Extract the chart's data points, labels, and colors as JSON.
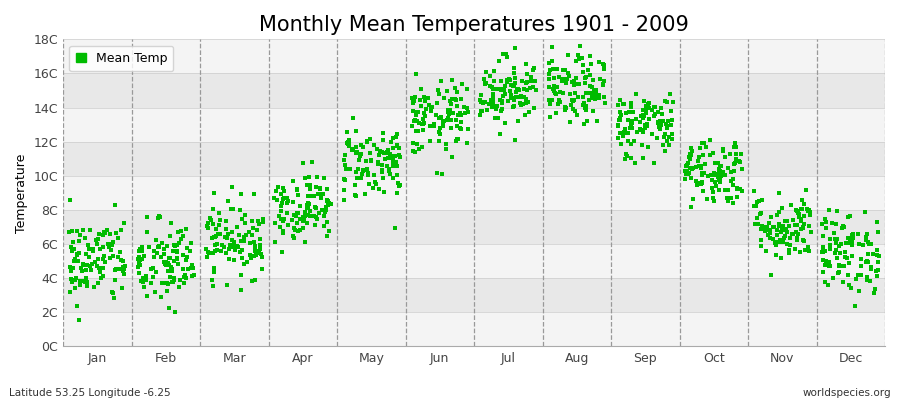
{
  "title": "Monthly Mean Temperatures 1901 - 2009",
  "ylabel": "Temperature",
  "xlabel": "",
  "subtitle_left": "Latitude 53.25 Longitude -6.25",
  "subtitle_right": "worldspecies.org",
  "legend_label": "Mean Temp",
  "marker_color": "#00BB00",
  "background_color": "#FFFFFF",
  "plot_bg_color": "#EFEFEF",
  "band_colors": [
    "#F4F4F4",
    "#E8E8E8"
  ],
  "ylim": [
    0,
    18
  ],
  "ytick_labels": [
    "0C",
    "2C",
    "4C",
    "6C",
    "8C",
    "10C",
    "12C",
    "14C",
    "16C",
    "18C"
  ],
  "ytick_values": [
    0,
    2,
    4,
    6,
    8,
    10,
    12,
    14,
    16,
    18
  ],
  "months": [
    "Jan",
    "Feb",
    "Mar",
    "Apr",
    "May",
    "Jun",
    "Jul",
    "Aug",
    "Sep",
    "Oct",
    "Nov",
    "Dec"
  ],
  "month_means": [
    5.0,
    4.8,
    6.3,
    8.2,
    10.8,
    13.3,
    15.0,
    15.0,
    13.0,
    10.3,
    7.0,
    5.5
  ],
  "month_stds": [
    1.3,
    1.3,
    1.1,
    1.0,
    1.1,
    1.1,
    1.0,
    1.0,
    1.0,
    1.0,
    1.0,
    1.2
  ],
  "n_years": 109,
  "random_seed": 42,
  "figsize": [
    9.0,
    4.0
  ],
  "dpi": 100,
  "title_fontsize": 15,
  "axis_label_fontsize": 9,
  "tick_fontsize": 9,
  "legend_fontsize": 9,
  "marker_size": 6,
  "grid_color": "#999999",
  "grid_linestyle": "--",
  "grid_linewidth": 0.9
}
